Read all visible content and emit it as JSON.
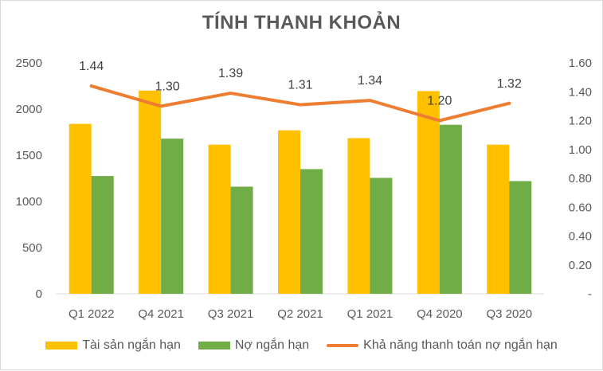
{
  "colors": {
    "assets": "#FFC000",
    "liabilities": "#70AD47",
    "ratio": "#ED7D31",
    "text": "#595959",
    "grid": "#d9d9d9"
  },
  "chart_data": {
    "type": "bar",
    "title": "TÍNH THANH KHOẢN",
    "categories": [
      "Q1 2022",
      "Q4 2021",
      "Q3 2021",
      "Q2 2021",
      "Q1 2021",
      "Q4 2020",
      "Q3 2020"
    ],
    "series": [
      {
        "name": "Tài sản ngắn hạn",
        "type": "bar",
        "axis": "left",
        "values": [
          1840,
          2200,
          1615,
          1770,
          1685,
          2195,
          1615
        ]
      },
      {
        "name": "Nợ ngắn hạn",
        "type": "bar",
        "axis": "left",
        "values": [
          1275,
          1680,
          1160,
          1350,
          1255,
          1830,
          1220
        ]
      },
      {
        "name": "Khả năng thanh toán nợ ngắn hạn",
        "type": "line",
        "axis": "right",
        "values": [
          1.44,
          1.3,
          1.39,
          1.31,
          1.34,
          1.2,
          1.32
        ],
        "labels": [
          "1.44",
          "1.30",
          "1.39",
          "1.31",
          "1.34",
          "1.20",
          "1.32"
        ]
      }
    ],
    "y_left": {
      "min": 0,
      "max": 2500,
      "ticks": [
        "0",
        "500",
        "1000",
        "1500",
        "2000",
        "2500"
      ]
    },
    "y_right": {
      "min": 0,
      "max": 1.6,
      "ticks": [
        "-",
        "0.20",
        "0.40",
        "0.60",
        "0.80",
        "1.00",
        "1.20",
        "1.40",
        "1.60"
      ]
    },
    "grid": false,
    "legend_position": "bottom"
  }
}
